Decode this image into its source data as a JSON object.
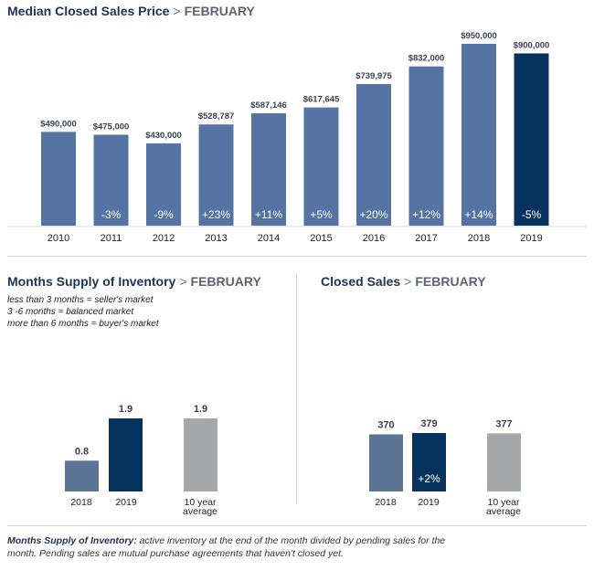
{
  "colors": {
    "bar": "#5674a3",
    "highlight": "#06325e",
    "muted": "#5c7597",
    "average": "#a5a8ab",
    "text": "#1c3456"
  },
  "median_section": {
    "title": "Median Closed Sales Price",
    "separator": ">",
    "month": "FEBRUARY"
  },
  "inventory_section": {
    "title": "Months Supply of Inventory",
    "separator": ">",
    "month": "FEBRUARY",
    "notes": [
      "less than 3 months = seller's market",
      "3 -6 months = balanced market",
      "more than 6 months = buyer's market"
    ]
  },
  "closed_section": {
    "title": "Closed Sales",
    "separator": ">",
    "month": "FEBRUARY"
  },
  "footnote": {
    "term": "Months Supply of Inventory:",
    "text": " active inventory at the end of the month divided by pending sales for the month. Pending sales are mutual purchase agreements that haven't closed yet."
  },
  "chart_data": [
    {
      "type": "bar",
      "categories": [
        "2010",
        "2011",
        "2012",
        "2013",
        "2014",
        "2015",
        "2016",
        "2017",
        "2018",
        "2019"
      ],
      "values": [
        490000,
        475000,
        430000,
        528787,
        587146,
        617645,
        739975,
        832000,
        950000,
        900000
      ],
      "value_labels": [
        "$490,000",
        "$475,000",
        "$430,000",
        "$528,787",
        "$587,146",
        "$617,645",
        "$739,975",
        "$832,000",
        "$950,000",
        "$900,000"
      ],
      "change_labels": [
        "",
        "-3%",
        "-9%",
        "+23%",
        "+11%",
        "+5%",
        "+20%",
        "+12%",
        "+14%",
        "-5%"
      ],
      "highlight_index": 9,
      "ylim": [
        0,
        950000
      ]
    },
    {
      "type": "bar",
      "categories": [
        "2018",
        "2019",
        "10 year average"
      ],
      "values": [
        0.8,
        1.9,
        1.9
      ],
      "value_labels": [
        "0.8",
        "1.9",
        "1.9"
      ],
      "ylim": [
        0,
        1.9
      ]
    },
    {
      "type": "bar",
      "categories": [
        "2018",
        "2019",
        "10 year average"
      ],
      "values": [
        370,
        379,
        377
      ],
      "value_labels": [
        "370",
        "379",
        "377"
      ],
      "change_labels": [
        "",
        "+2%",
        ""
      ],
      "ylim": [
        0,
        379
      ]
    }
  ]
}
